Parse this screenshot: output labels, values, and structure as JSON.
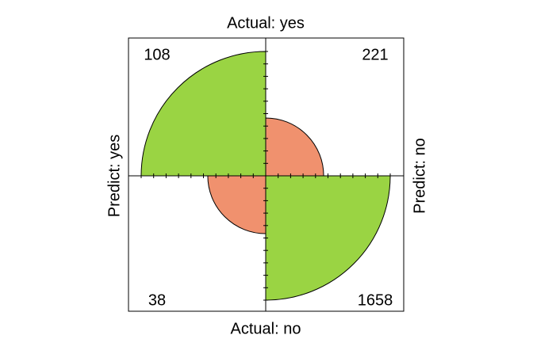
{
  "chart_data": {
    "type": "fourfold",
    "top_label": "Actual: yes",
    "bottom_label": "Actual: no",
    "left_label": "Predict: yes",
    "right_label": "Predict: no",
    "values": [
      [
        108,
        221
      ],
      [
        38,
        1658
      ]
    ],
    "colors": [
      [
        "#9ad443",
        "#f0916e"
      ],
      [
        "#f0916e",
        "#9ad443"
      ]
    ]
  }
}
